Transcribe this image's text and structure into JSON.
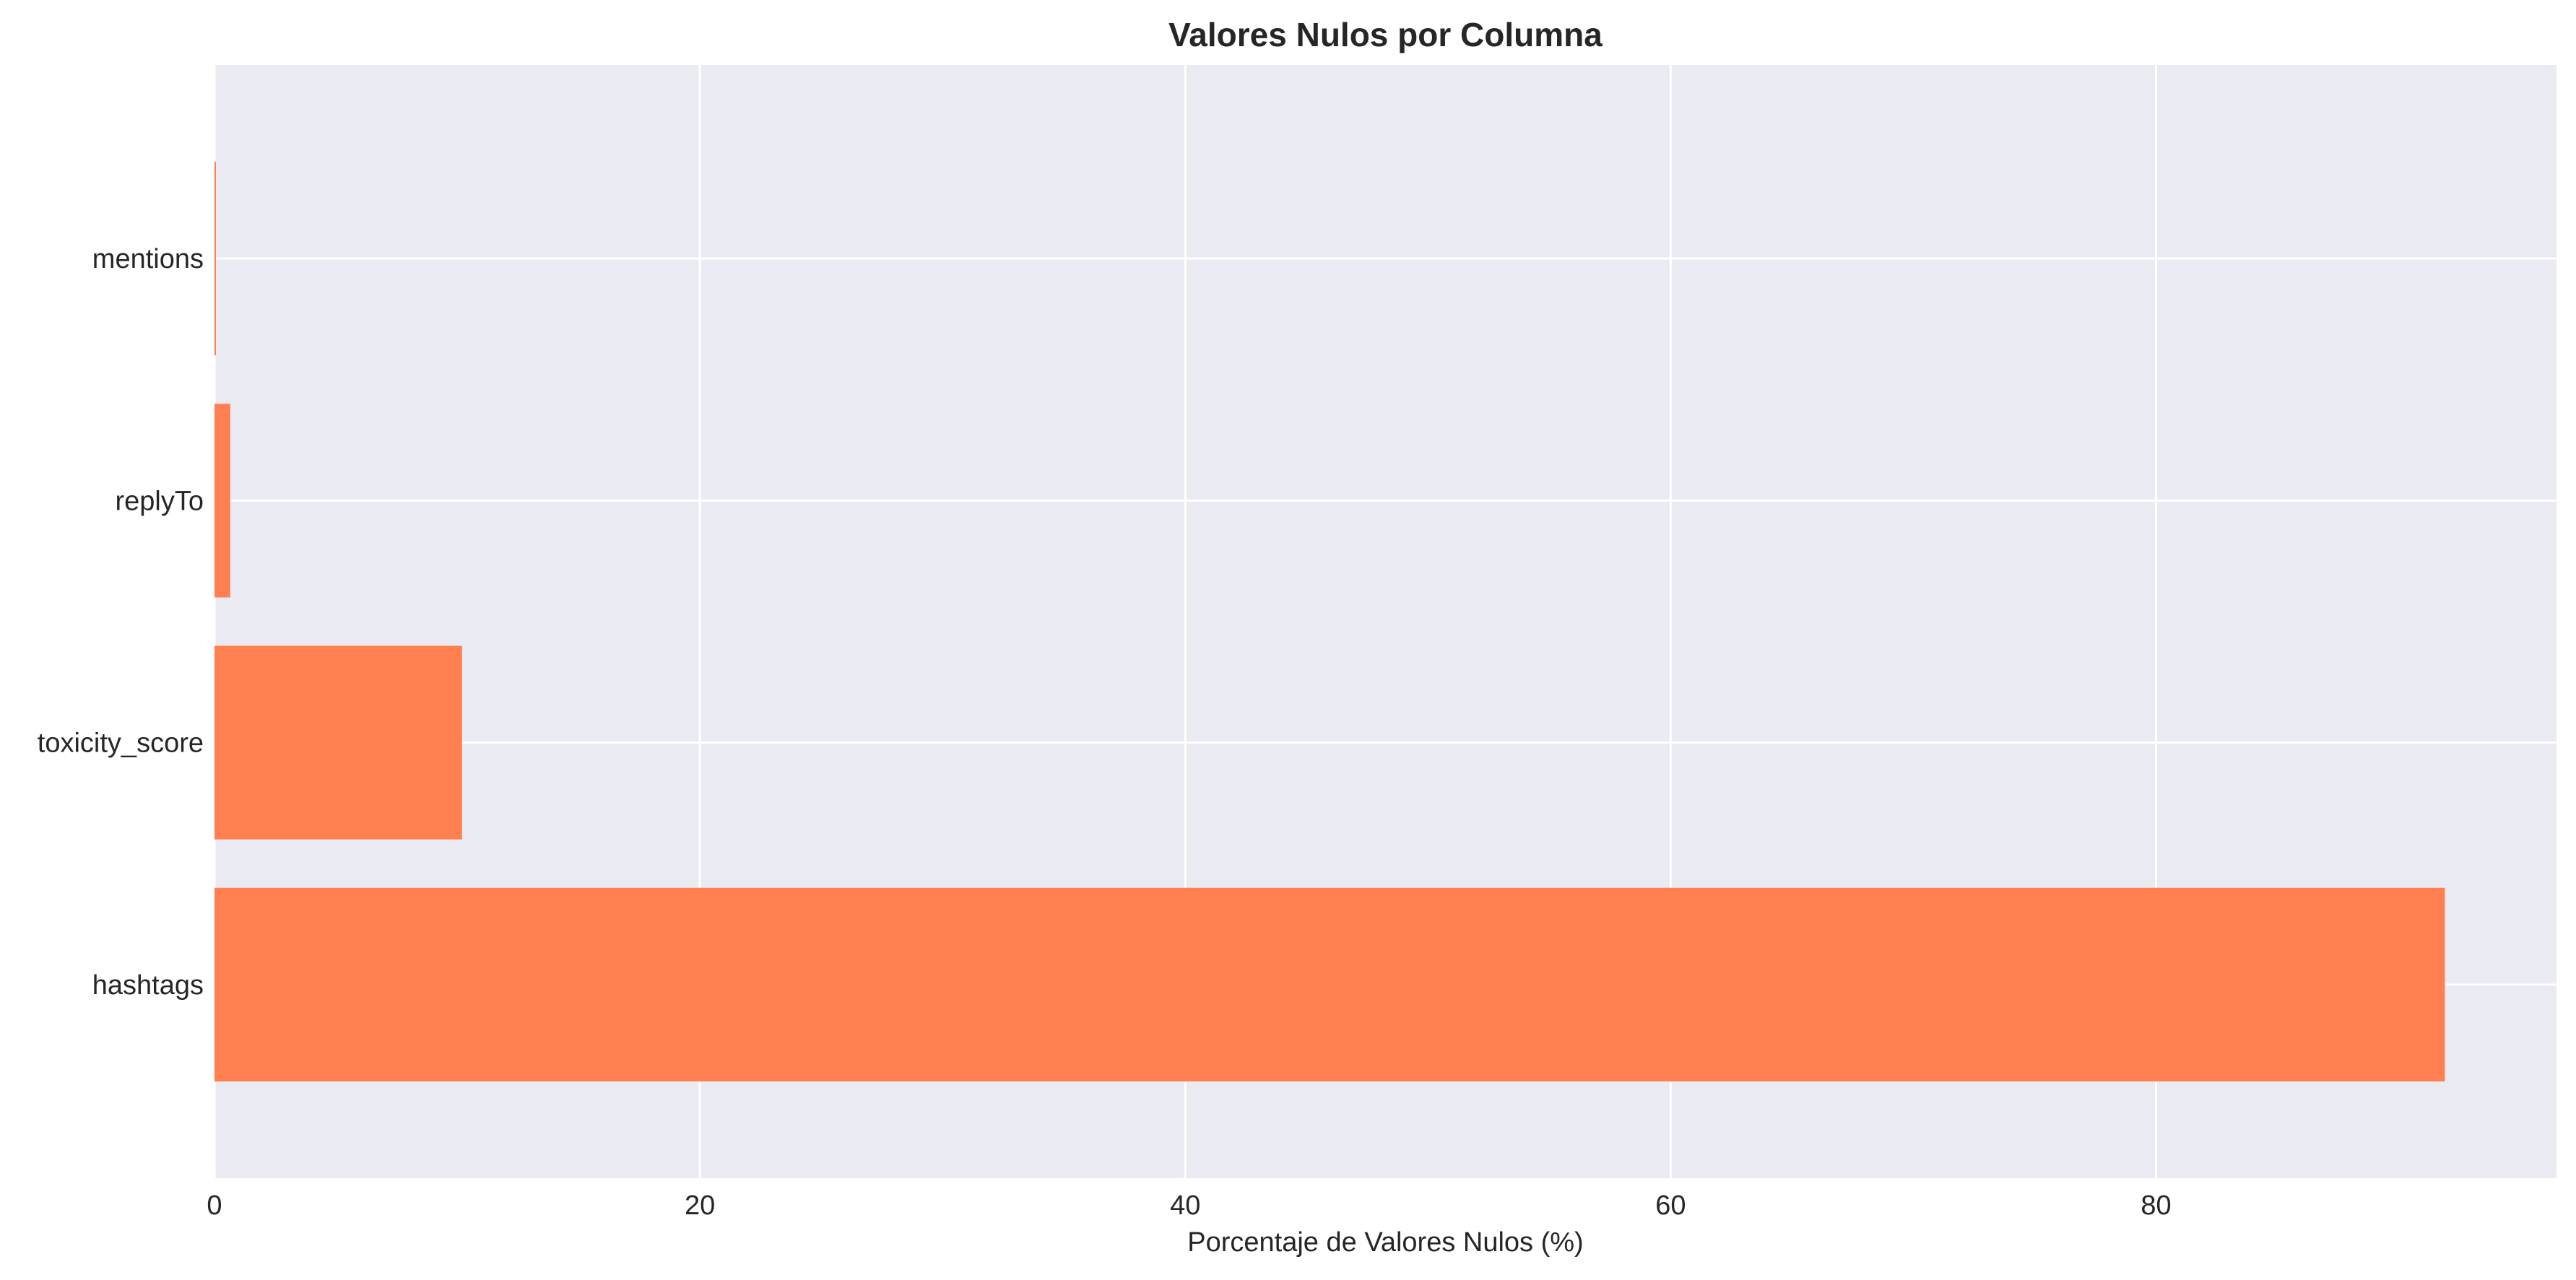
{
  "chart_data": {
    "type": "bar",
    "orientation": "horizontal",
    "title": "Valores Nulos por Columna",
    "xlabel": "Porcentaje de Valores Nulos (%)",
    "ylabel": "",
    "categories": [
      "hashtags",
      "toxicity_score",
      "replyTo",
      "mentions"
    ],
    "values": [
      91.9,
      10.2,
      0.65,
      0.05
    ],
    "xlim": [
      0,
      96.5
    ],
    "xticks": [
      0,
      20,
      40,
      60,
      80
    ],
    "grid": true,
    "colors": {
      "bar": "#ff7f50",
      "plot_background": "#eaeaf2",
      "grid": "#ffffff",
      "figure_background": "#ffffff"
    }
  }
}
